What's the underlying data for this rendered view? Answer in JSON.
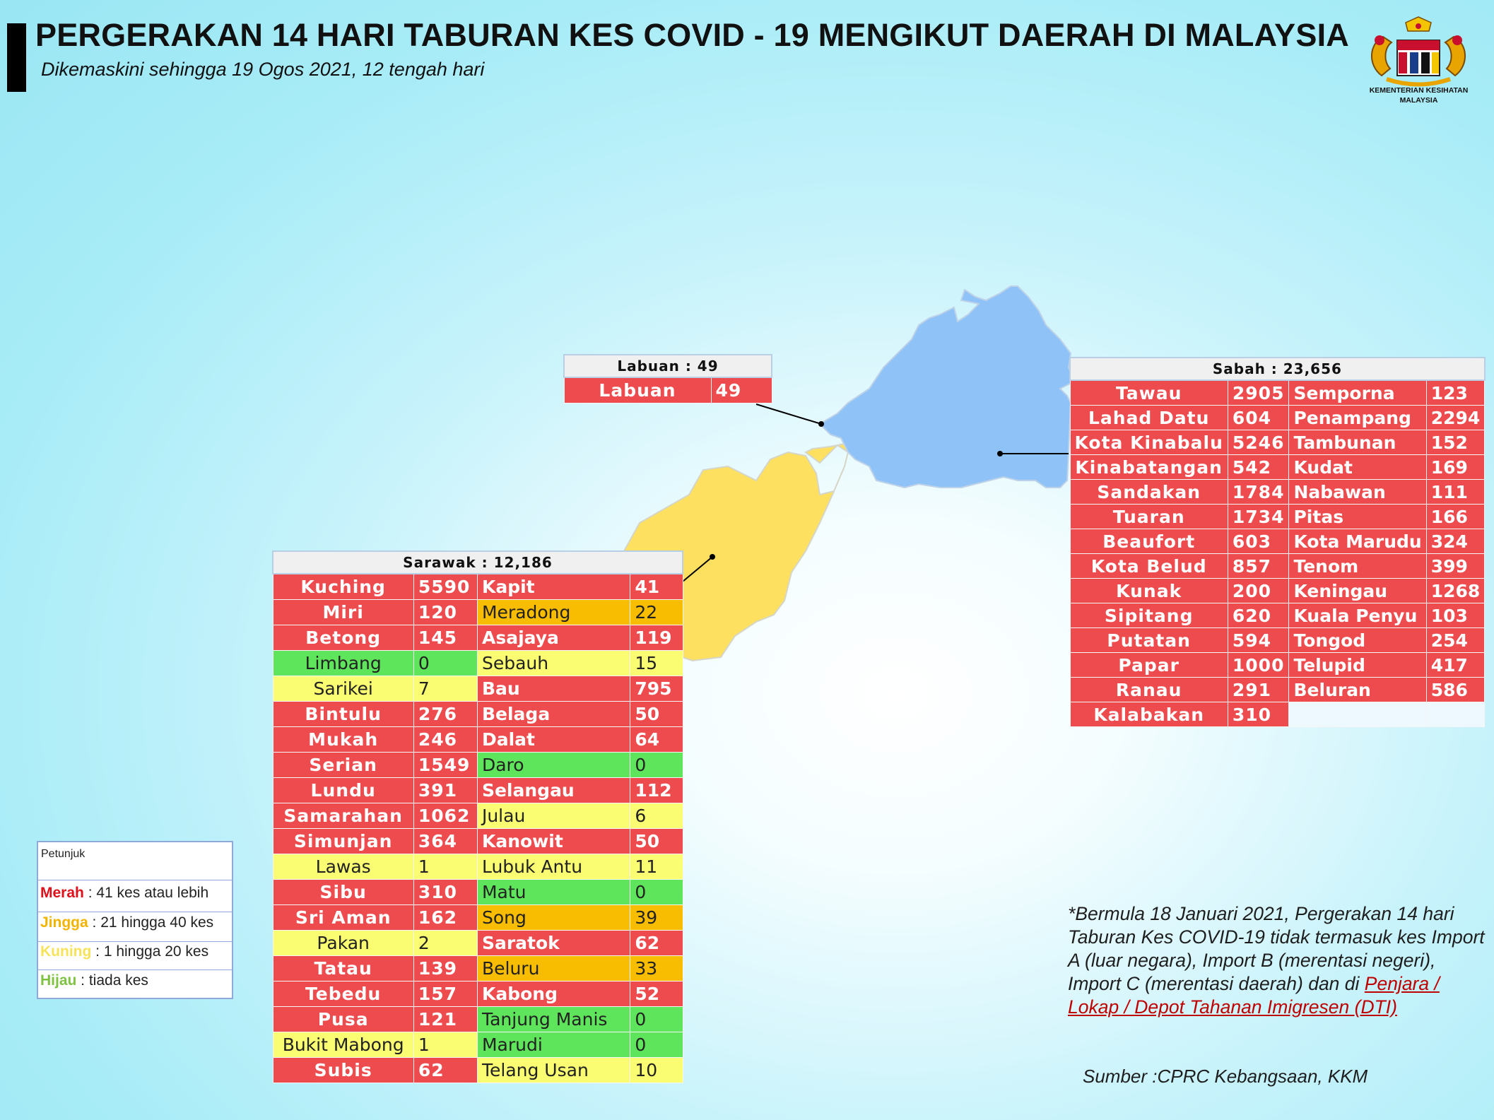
{
  "header": {
    "title": "PERGERAKAN 14 HARI TABURAN KES COVID - 19 MENGIKUT DAERAH DI MALAYSIA",
    "subtitle": "Dikemaskini sehingga 19 Ogos 2021, 12 tengah hari",
    "logo_text_1": "KEMENTERIAN KESIHATAN",
    "logo_text_2": "MALAYSIA"
  },
  "colors": {
    "red": "#ee4b4e",
    "orange": "#f8bd00",
    "yellow": "#fafd72",
    "green": "#5fe55c",
    "sabah": "#8fc3f7",
    "sarawak": "#fde05f"
  },
  "labuan": {
    "header": "Labuan : 49",
    "rows": [
      {
        "name": "Labuan",
        "value": "49",
        "level": "red"
      }
    ]
  },
  "sabah": {
    "header": "Sabah : 23,656",
    "rows": [
      [
        {
          "name": "Tawau",
          "value": "2905",
          "level": "red"
        },
        {
          "name": "Semporna",
          "value": "123",
          "level": "red"
        }
      ],
      [
        {
          "name": "Lahad Datu",
          "value": "604",
          "level": "red"
        },
        {
          "name": "Penampang",
          "value": "2294",
          "level": "red"
        }
      ],
      [
        {
          "name": "Kota Kinabalu",
          "value": "5246",
          "level": "red"
        },
        {
          "name": "Tambunan",
          "value": "152",
          "level": "red"
        }
      ],
      [
        {
          "name": "Kinabatangan",
          "value": "542",
          "level": "red"
        },
        {
          "name": "Kudat",
          "value": "169",
          "level": "red"
        }
      ],
      [
        {
          "name": "Sandakan",
          "value": "1784",
          "level": "red"
        },
        {
          "name": "Nabawan",
          "value": "111",
          "level": "red"
        }
      ],
      [
        {
          "name": "Tuaran",
          "value": "1734",
          "level": "red"
        },
        {
          "name": "Pitas",
          "value": "166",
          "level": "red"
        }
      ],
      [
        {
          "name": "Beaufort",
          "value": "603",
          "level": "red"
        },
        {
          "name": "Kota Marudu",
          "value": "324",
          "level": "red"
        }
      ],
      [
        {
          "name": "Kota Belud",
          "value": "857",
          "level": "red"
        },
        {
          "name": "Tenom",
          "value": "399",
          "level": "red"
        }
      ],
      [
        {
          "name": "Kunak",
          "value": "200",
          "level": "red"
        },
        {
          "name": "Keningau",
          "value": "1268",
          "level": "red"
        }
      ],
      [
        {
          "name": "Sipitang",
          "value": "620",
          "level": "red"
        },
        {
          "name": "Kuala Penyu",
          "value": "103",
          "level": "red"
        }
      ],
      [
        {
          "name": "Putatan",
          "value": "594",
          "level": "red"
        },
        {
          "name": "Tongod",
          "value": "254",
          "level": "red"
        }
      ],
      [
        {
          "name": "Papar",
          "value": "1000",
          "level": "red"
        },
        {
          "name": "Telupid",
          "value": "417",
          "level": "red"
        }
      ],
      [
        {
          "name": "Ranau",
          "value": "291",
          "level": "red"
        },
        {
          "name": "Beluran",
          "value": "586",
          "level": "red"
        }
      ],
      [
        {
          "name": "Kalabakan",
          "value": "310",
          "level": "red"
        },
        null
      ]
    ]
  },
  "sarawak": {
    "header": "Sarawak : 12,186",
    "rows": [
      [
        {
          "name": "Kuching",
          "value": "5590",
          "level": "red"
        },
        {
          "name": "Kapit",
          "value": "41",
          "level": "red"
        }
      ],
      [
        {
          "name": "Miri",
          "value": "120",
          "level": "red"
        },
        {
          "name": "Meradong",
          "value": "22",
          "level": "orange"
        }
      ],
      [
        {
          "name": "Betong",
          "value": "145",
          "level": "red"
        },
        {
          "name": "Asajaya",
          "value": "119",
          "level": "red"
        }
      ],
      [
        {
          "name": "Limbang",
          "value": "0",
          "level": "green"
        },
        {
          "name": "Sebauh",
          "value": "15",
          "level": "yellow"
        }
      ],
      [
        {
          "name": "Sarikei",
          "value": "7",
          "level": "yellow"
        },
        {
          "name": "Bau",
          "value": "795",
          "level": "red"
        }
      ],
      [
        {
          "name": "Bintulu",
          "value": "276",
          "level": "red"
        },
        {
          "name": "Belaga",
          "value": "50",
          "level": "red"
        }
      ],
      [
        {
          "name": "Mukah",
          "value": "246",
          "level": "red"
        },
        {
          "name": "Dalat",
          "value": "64",
          "level": "red"
        }
      ],
      [
        {
          "name": "Serian",
          "value": "1549",
          "level": "red"
        },
        {
          "name": "Daro",
          "value": "0",
          "level": "green"
        }
      ],
      [
        {
          "name": "Lundu",
          "value": "391",
          "level": "red"
        },
        {
          "name": "Selangau",
          "value": "112",
          "level": "red"
        }
      ],
      [
        {
          "name": "Samarahan",
          "value": "1062",
          "level": "red"
        },
        {
          "name": "Julau",
          "value": "6",
          "level": "yellow"
        }
      ],
      [
        {
          "name": "Simunjan",
          "value": "364",
          "level": "red"
        },
        {
          "name": "Kanowit",
          "value": "50",
          "level": "red"
        }
      ],
      [
        {
          "name": "Lawas",
          "value": "1",
          "level": "yellow"
        },
        {
          "name": "Lubuk Antu",
          "value": "11",
          "level": "yellow"
        }
      ],
      [
        {
          "name": "Sibu",
          "value": "310",
          "level": "red"
        },
        {
          "name": "Matu",
          "value": "0",
          "level": "green"
        }
      ],
      [
        {
          "name": "Sri Aman",
          "value": "162",
          "level": "red"
        },
        {
          "name": "Song",
          "value": "39",
          "level": "orange"
        }
      ],
      [
        {
          "name": "Pakan",
          "value": "2",
          "level": "yellow"
        },
        {
          "name": "Saratok",
          "value": "62",
          "level": "red"
        }
      ],
      [
        {
          "name": "Tatau",
          "value": "139",
          "level": "red"
        },
        {
          "name": "Beluru",
          "value": "33",
          "level": "orange"
        }
      ],
      [
        {
          "name": "Tebedu",
          "value": "157",
          "level": "red"
        },
        {
          "name": "Kabong",
          "value": "52",
          "level": "red"
        }
      ],
      [
        {
          "name": "Pusa",
          "value": "121",
          "level": "red"
        },
        {
          "name": "Tanjung Manis",
          "value": "0",
          "level": "green"
        }
      ],
      [
        {
          "name": "Bukit Mabong",
          "value": "1",
          "level": "yellow"
        },
        {
          "name": "Marudi",
          "value": "0",
          "level": "green"
        }
      ],
      [
        {
          "name": "Subis",
          "value": "62",
          "level": "red"
        },
        {
          "name": "Telang Usan",
          "value": "10",
          "level": "yellow"
        }
      ]
    ]
  },
  "legend": {
    "title": "Petunjuk",
    "items": [
      {
        "key": "Merah",
        "text": " : 41 kes atau lebih",
        "color": "#e0101a"
      },
      {
        "key": "Jingga",
        "text": " : 21 hingga 40 kes",
        "color": "#f2b400"
      },
      {
        "key": "Kuning",
        "text": " : 1 hingga 20 kes",
        "color": "#f6e35a"
      },
      {
        "key": "Hijau",
        "text": " : tiada kes",
        "color": "#7fc241"
      }
    ]
  },
  "note": {
    "text": "*Bermula 18 Januari 2021, Pergerakan 14 hari Taburan Kes COVID-19 tidak termasuk kes Import A (luar negara), Import B (merentasi negeri), Import C (merentasi daerah) dan di ",
    "link": "Penjara / Lokap / Depot Tahanan Imigresen (DTI)"
  },
  "source": "Sumber :CPRC Kebangsaan,  KKM"
}
